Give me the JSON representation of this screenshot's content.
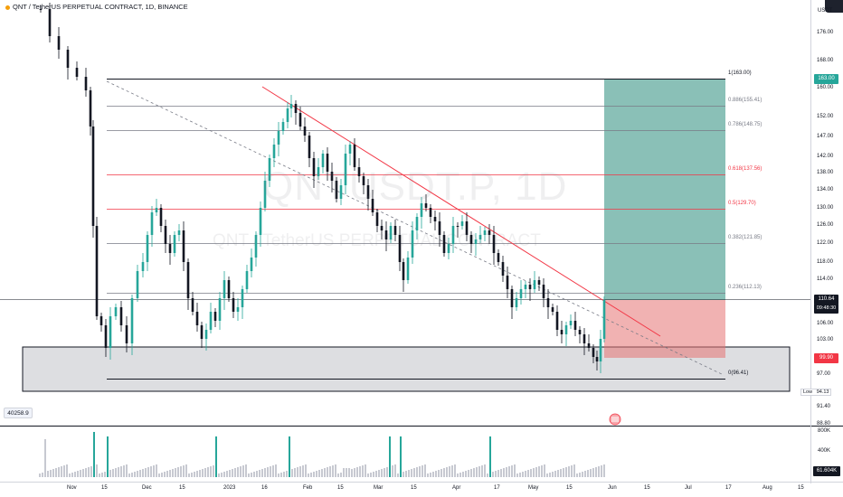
{
  "header": {
    "title": "QNT / TetherUS PERPETUAL CONTRACT, 1D, BINANCE"
  },
  "watermark": {
    "symbol": "QNTUSDT.P, 1D",
    "name": "QNT / TetherUS PERPETUAL CONTRACT"
  },
  "price_axis": {
    "currency": "USDT",
    "ticks": [
      "176.00",
      "168.00",
      "160.00",
      "152.00",
      "147.00",
      "142.00",
      "138.00",
      "134.00",
      "130.00",
      "126.00",
      "122.00",
      "118.00",
      "114.00",
      "106.00",
      "103.00",
      "97.00",
      "91.40",
      "88.80"
    ],
    "current_price": "110.64",
    "countdown": "09:48:30",
    "target_price": "163.00",
    "stop_price": "99.90",
    "low_label": "Low",
    "low_value": "94.13"
  },
  "volume_axis": {
    "ticks": [
      "800K",
      "400K"
    ],
    "current_volume": "61.604K",
    "indicator_value": "40258.9"
  },
  "time_axis": {
    "ticks": [
      "Nov",
      "15",
      "Dec",
      "15",
      "2023",
      "16",
      "Feb",
      "15",
      "Mar",
      "15",
      "Apr",
      "17",
      "May",
      "15",
      "Jun",
      "15",
      "Jul",
      "17",
      "Aug",
      "15"
    ]
  },
  "fibonacci": {
    "levels": [
      {
        "label": "1(163.00)",
        "price": 163.0,
        "color": "#131722"
      },
      {
        "label": "0.886(155.41)",
        "price": 155.41,
        "color": "#787b86"
      },
      {
        "label": "0.786(148.75)",
        "price": 148.75,
        "color": "#787b86"
      },
      {
        "label": "0.618(137.56)",
        "price": 137.56,
        "color": "#f23645"
      },
      {
        "label": "0.5(129.70)",
        "price": 129.7,
        "color": "#f23645"
      },
      {
        "label": "0.382(121.85)",
        "price": 121.85,
        "color": "#787b86"
      },
      {
        "label": "0.236(112.13)",
        "price": 112.13,
        "color": "#787b86"
      },
      {
        "label": "0(96.41)",
        "price": 96.41,
        "color": "#131722"
      }
    ]
  },
  "colors": {
    "up": "#26a69a",
    "down": "#131722",
    "target_zone": "#4c9e91",
    "stop_zone": "#e57373",
    "trendline": "#f23645",
    "current_tag": "#131722",
    "target_tag": "#26a69a",
    "stop_tag": "#f23645"
  }
}
